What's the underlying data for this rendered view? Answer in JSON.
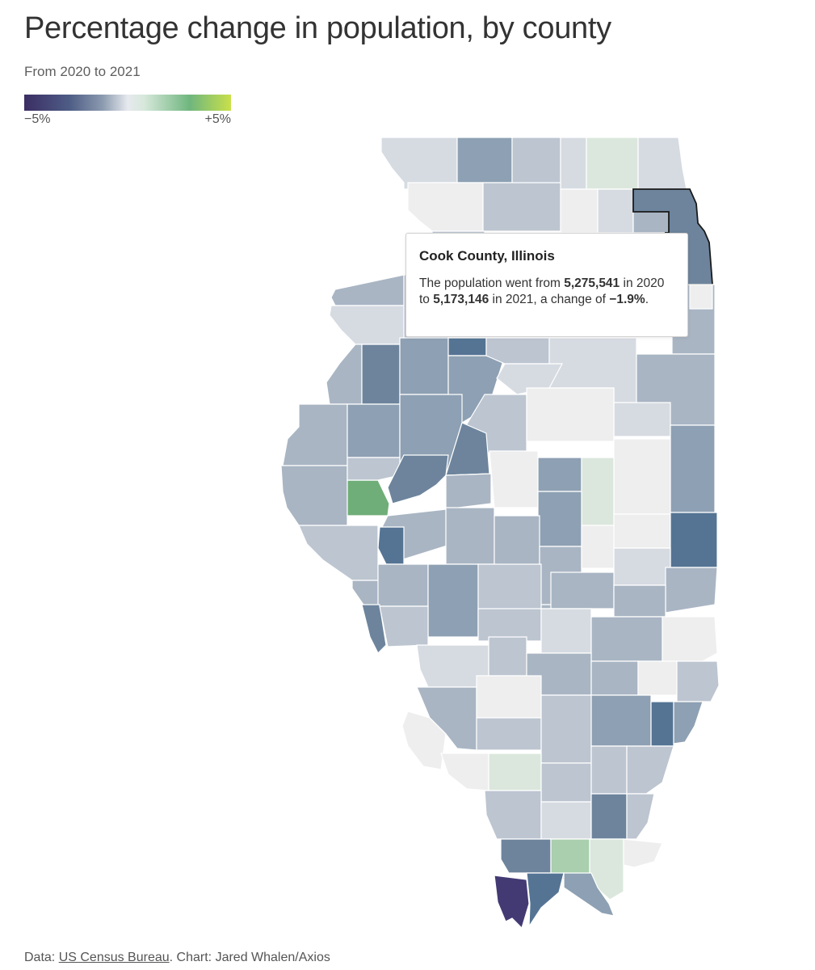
{
  "header": {
    "title": "Percentage change in population, by county",
    "subtitle": "From 2020 to 2021"
  },
  "legend": {
    "min_label": "−5%",
    "max_label": "+5%",
    "colors": [
      "#3b2e63",
      "#4e5d86",
      "#8c9bb0",
      "#e6e9ee",
      "#d7e8db",
      "#6fb67e",
      "#c9e04a"
    ]
  },
  "tooltip": {
    "title": "Cook County, Illinois",
    "text_1": "The population went from ",
    "pop_2020": "5,275,541",
    "text_2": " in 2020 to ",
    "pop_2021": "5,173,146",
    "text_3": " in 2021, a change of ",
    "change": "−1.9%",
    "text_4": "."
  },
  "footer": {
    "data_prefix": "Data: ",
    "source_link": "US Census Bureau",
    "chart_credit": ". Chart: Jared Whalen/Axios"
  },
  "colors": {
    "c_light": "#d6dbe2",
    "c_lightest": "#eeeeee",
    "c_mid_light": "#bcc5d0",
    "c_mid": "#a9b5c3",
    "c_mid_dark": "#8ea0b3",
    "c_dark": "#6d849c",
    "c_darker": "#557494",
    "c_darkest": "#433a74",
    "c_green_light": "#dbe7dd",
    "c_green": "#6fae78",
    "c_green_soft": "#a9cfae"
  }
}
